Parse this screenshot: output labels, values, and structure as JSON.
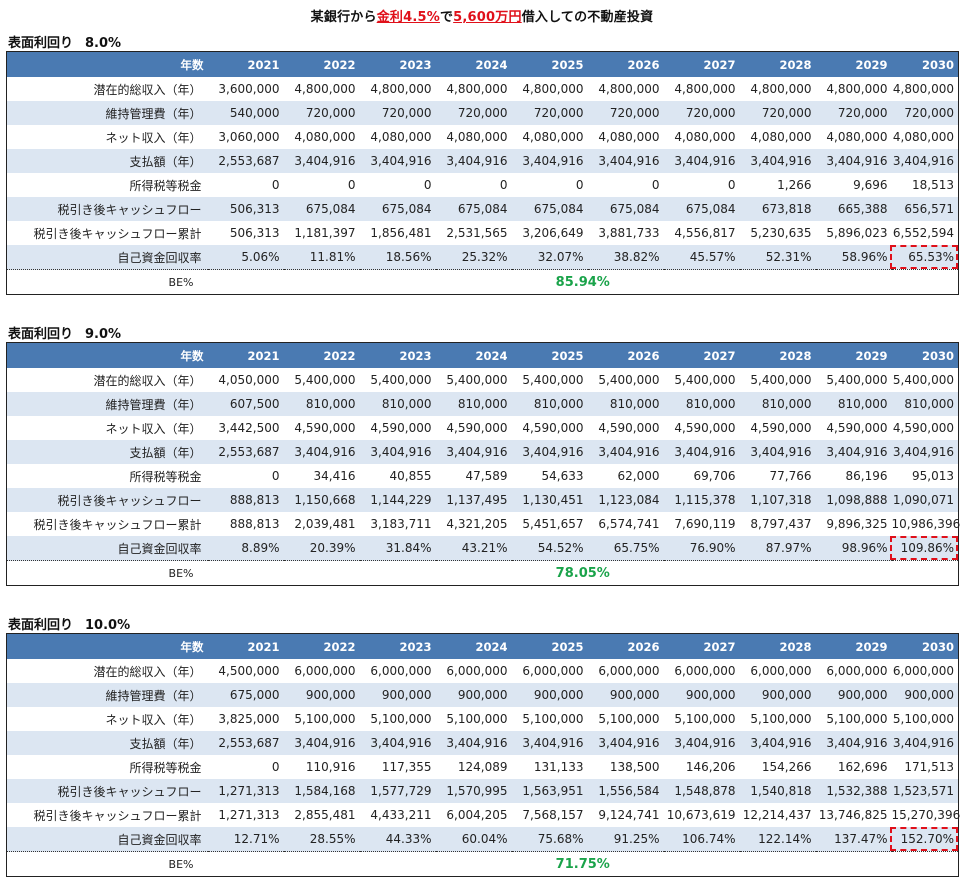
{
  "title": {
    "part1": "某銀行から",
    "rate": "金利4.5%",
    "part2": "で",
    "loan": "5,600万円",
    "part3": "借入しての不動産投資"
  },
  "header_years": [
    "年数",
    "2021",
    "2022",
    "2023",
    "2024",
    "2025",
    "2026",
    "2027",
    "2028",
    "2029",
    "2030"
  ],
  "be_label": "BE%",
  "accent_color": "#4a7ab2",
  "highlight_color": "#e0101a",
  "be_color": "#1aa34a",
  "sections": [
    {
      "label": "表面利回り",
      "yield": "8.0%",
      "rows": [
        {
          "label": "潜在的総収入（年）",
          "values": [
            "3,600,000",
            "4,800,000",
            "4,800,000",
            "4,800,000",
            "4,800,000",
            "4,800,000",
            "4,800,000",
            "4,800,000",
            "4,800,000",
            "4,800,000"
          ]
        },
        {
          "label": "維持管理費（年）",
          "values": [
            "540,000",
            "720,000",
            "720,000",
            "720,000",
            "720,000",
            "720,000",
            "720,000",
            "720,000",
            "720,000",
            "720,000"
          ]
        },
        {
          "label": "ネット収入（年）",
          "values": [
            "3,060,000",
            "4,080,000",
            "4,080,000",
            "4,080,000",
            "4,080,000",
            "4,080,000",
            "4,080,000",
            "4,080,000",
            "4,080,000",
            "4,080,000"
          ]
        },
        {
          "label": "支払額（年）",
          "values": [
            "2,553,687",
            "3,404,916",
            "3,404,916",
            "3,404,916",
            "3,404,916",
            "3,404,916",
            "3,404,916",
            "3,404,916",
            "3,404,916",
            "3,404,916"
          ]
        },
        {
          "label": "所得税等税金",
          "values": [
            "0",
            "0",
            "0",
            "0",
            "0",
            "0",
            "0",
            "1,266",
            "9,696",
            "18,513"
          ]
        },
        {
          "label": "税引き後キャッシュフロー",
          "values": [
            "506,313",
            "675,084",
            "675,084",
            "675,084",
            "675,084",
            "675,084",
            "675,084",
            "673,818",
            "665,388",
            "656,571"
          ]
        },
        {
          "label": "税引き後キャッシュフロー累計",
          "values": [
            "506,313",
            "1,181,397",
            "1,856,481",
            "2,531,565",
            "3,206,649",
            "3,881,733",
            "4,556,817",
            "5,230,635",
            "5,896,023",
            "6,552,594"
          ]
        },
        {
          "label": "自己資金回収率",
          "values": [
            "5.06%",
            "11.81%",
            "18.56%",
            "25.32%",
            "32.07%",
            "38.82%",
            "45.57%",
            "52.31%",
            "58.96%",
            "65.53%"
          ]
        }
      ],
      "be_value": "85.94%"
    },
    {
      "label": "表面利回り",
      "yield": "9.0%",
      "rows": [
        {
          "label": "潜在的総収入（年）",
          "values": [
            "4,050,000",
            "5,400,000",
            "5,400,000",
            "5,400,000",
            "5,400,000",
            "5,400,000",
            "5,400,000",
            "5,400,000",
            "5,400,000",
            "5,400,000"
          ]
        },
        {
          "label": "維持管理費（年）",
          "values": [
            "607,500",
            "810,000",
            "810,000",
            "810,000",
            "810,000",
            "810,000",
            "810,000",
            "810,000",
            "810,000",
            "810,000"
          ]
        },
        {
          "label": "ネット収入（年）",
          "values": [
            "3,442,500",
            "4,590,000",
            "4,590,000",
            "4,590,000",
            "4,590,000",
            "4,590,000",
            "4,590,000",
            "4,590,000",
            "4,590,000",
            "4,590,000"
          ]
        },
        {
          "label": "支払額（年）",
          "values": [
            "2,553,687",
            "3,404,916",
            "3,404,916",
            "3,404,916",
            "3,404,916",
            "3,404,916",
            "3,404,916",
            "3,404,916",
            "3,404,916",
            "3,404,916"
          ]
        },
        {
          "label": "所得税等税金",
          "values": [
            "0",
            "34,416",
            "40,855",
            "47,589",
            "54,633",
            "62,000",
            "69,706",
            "77,766",
            "86,196",
            "95,013"
          ]
        },
        {
          "label": "税引き後キャッシュフロー",
          "values": [
            "888,813",
            "1,150,668",
            "1,144,229",
            "1,137,495",
            "1,130,451",
            "1,123,084",
            "1,115,378",
            "1,107,318",
            "1,098,888",
            "1,090,071"
          ]
        },
        {
          "label": "税引き後キャッシュフロー累計",
          "values": [
            "888,813",
            "2,039,481",
            "3,183,711",
            "4,321,205",
            "5,451,657",
            "6,574,741",
            "7,690,119",
            "8,797,437",
            "9,896,325",
            "10,986,396"
          ]
        },
        {
          "label": "自己資金回収率",
          "values": [
            "8.89%",
            "20.39%",
            "31.84%",
            "43.21%",
            "54.52%",
            "65.75%",
            "76.90%",
            "87.97%",
            "98.96%",
            "109.86%"
          ]
        }
      ],
      "be_value": "78.05%"
    },
    {
      "label": "表面利回り",
      "yield": "10.0%",
      "rows": [
        {
          "label": "潜在的総収入（年）",
          "values": [
            "4,500,000",
            "6,000,000",
            "6,000,000",
            "6,000,000",
            "6,000,000",
            "6,000,000",
            "6,000,000",
            "6,000,000",
            "6,000,000",
            "6,000,000"
          ]
        },
        {
          "label": "維持管理費（年）",
          "values": [
            "675,000",
            "900,000",
            "900,000",
            "900,000",
            "900,000",
            "900,000",
            "900,000",
            "900,000",
            "900,000",
            "900,000"
          ]
        },
        {
          "label": "ネット収入（年）",
          "values": [
            "3,825,000",
            "5,100,000",
            "5,100,000",
            "5,100,000",
            "5,100,000",
            "5,100,000",
            "5,100,000",
            "5,100,000",
            "5,100,000",
            "5,100,000"
          ]
        },
        {
          "label": "支払額（年）",
          "values": [
            "2,553,687",
            "3,404,916",
            "3,404,916",
            "3,404,916",
            "3,404,916",
            "3,404,916",
            "3,404,916",
            "3,404,916",
            "3,404,916",
            "3,404,916"
          ]
        },
        {
          "label": "所得税等税金",
          "values": [
            "0",
            "110,916",
            "117,355",
            "124,089",
            "131,133",
            "138,500",
            "146,206",
            "154,266",
            "162,696",
            "171,513"
          ]
        },
        {
          "label": "税引き後キャッシュフロー",
          "values": [
            "1,271,313",
            "1,584,168",
            "1,577,729",
            "1,570,995",
            "1,563,951",
            "1,556,584",
            "1,548,878",
            "1,540,818",
            "1,532,388",
            "1,523,571"
          ]
        },
        {
          "label": "税引き後キャッシュフロー累計",
          "values": [
            "1,271,313",
            "2,855,481",
            "4,433,211",
            "6,004,205",
            "7,568,157",
            "9,124,741",
            "10,673,619",
            "12,214,437",
            "13,746,825",
            "15,270,396"
          ]
        },
        {
          "label": "自己資金回収率",
          "values": [
            "12.71%",
            "28.55%",
            "44.33%",
            "60.04%",
            "75.68%",
            "91.25%",
            "106.74%",
            "122.14%",
            "137.47%",
            "152.70%"
          ]
        }
      ],
      "be_value": "71.75%"
    }
  ]
}
